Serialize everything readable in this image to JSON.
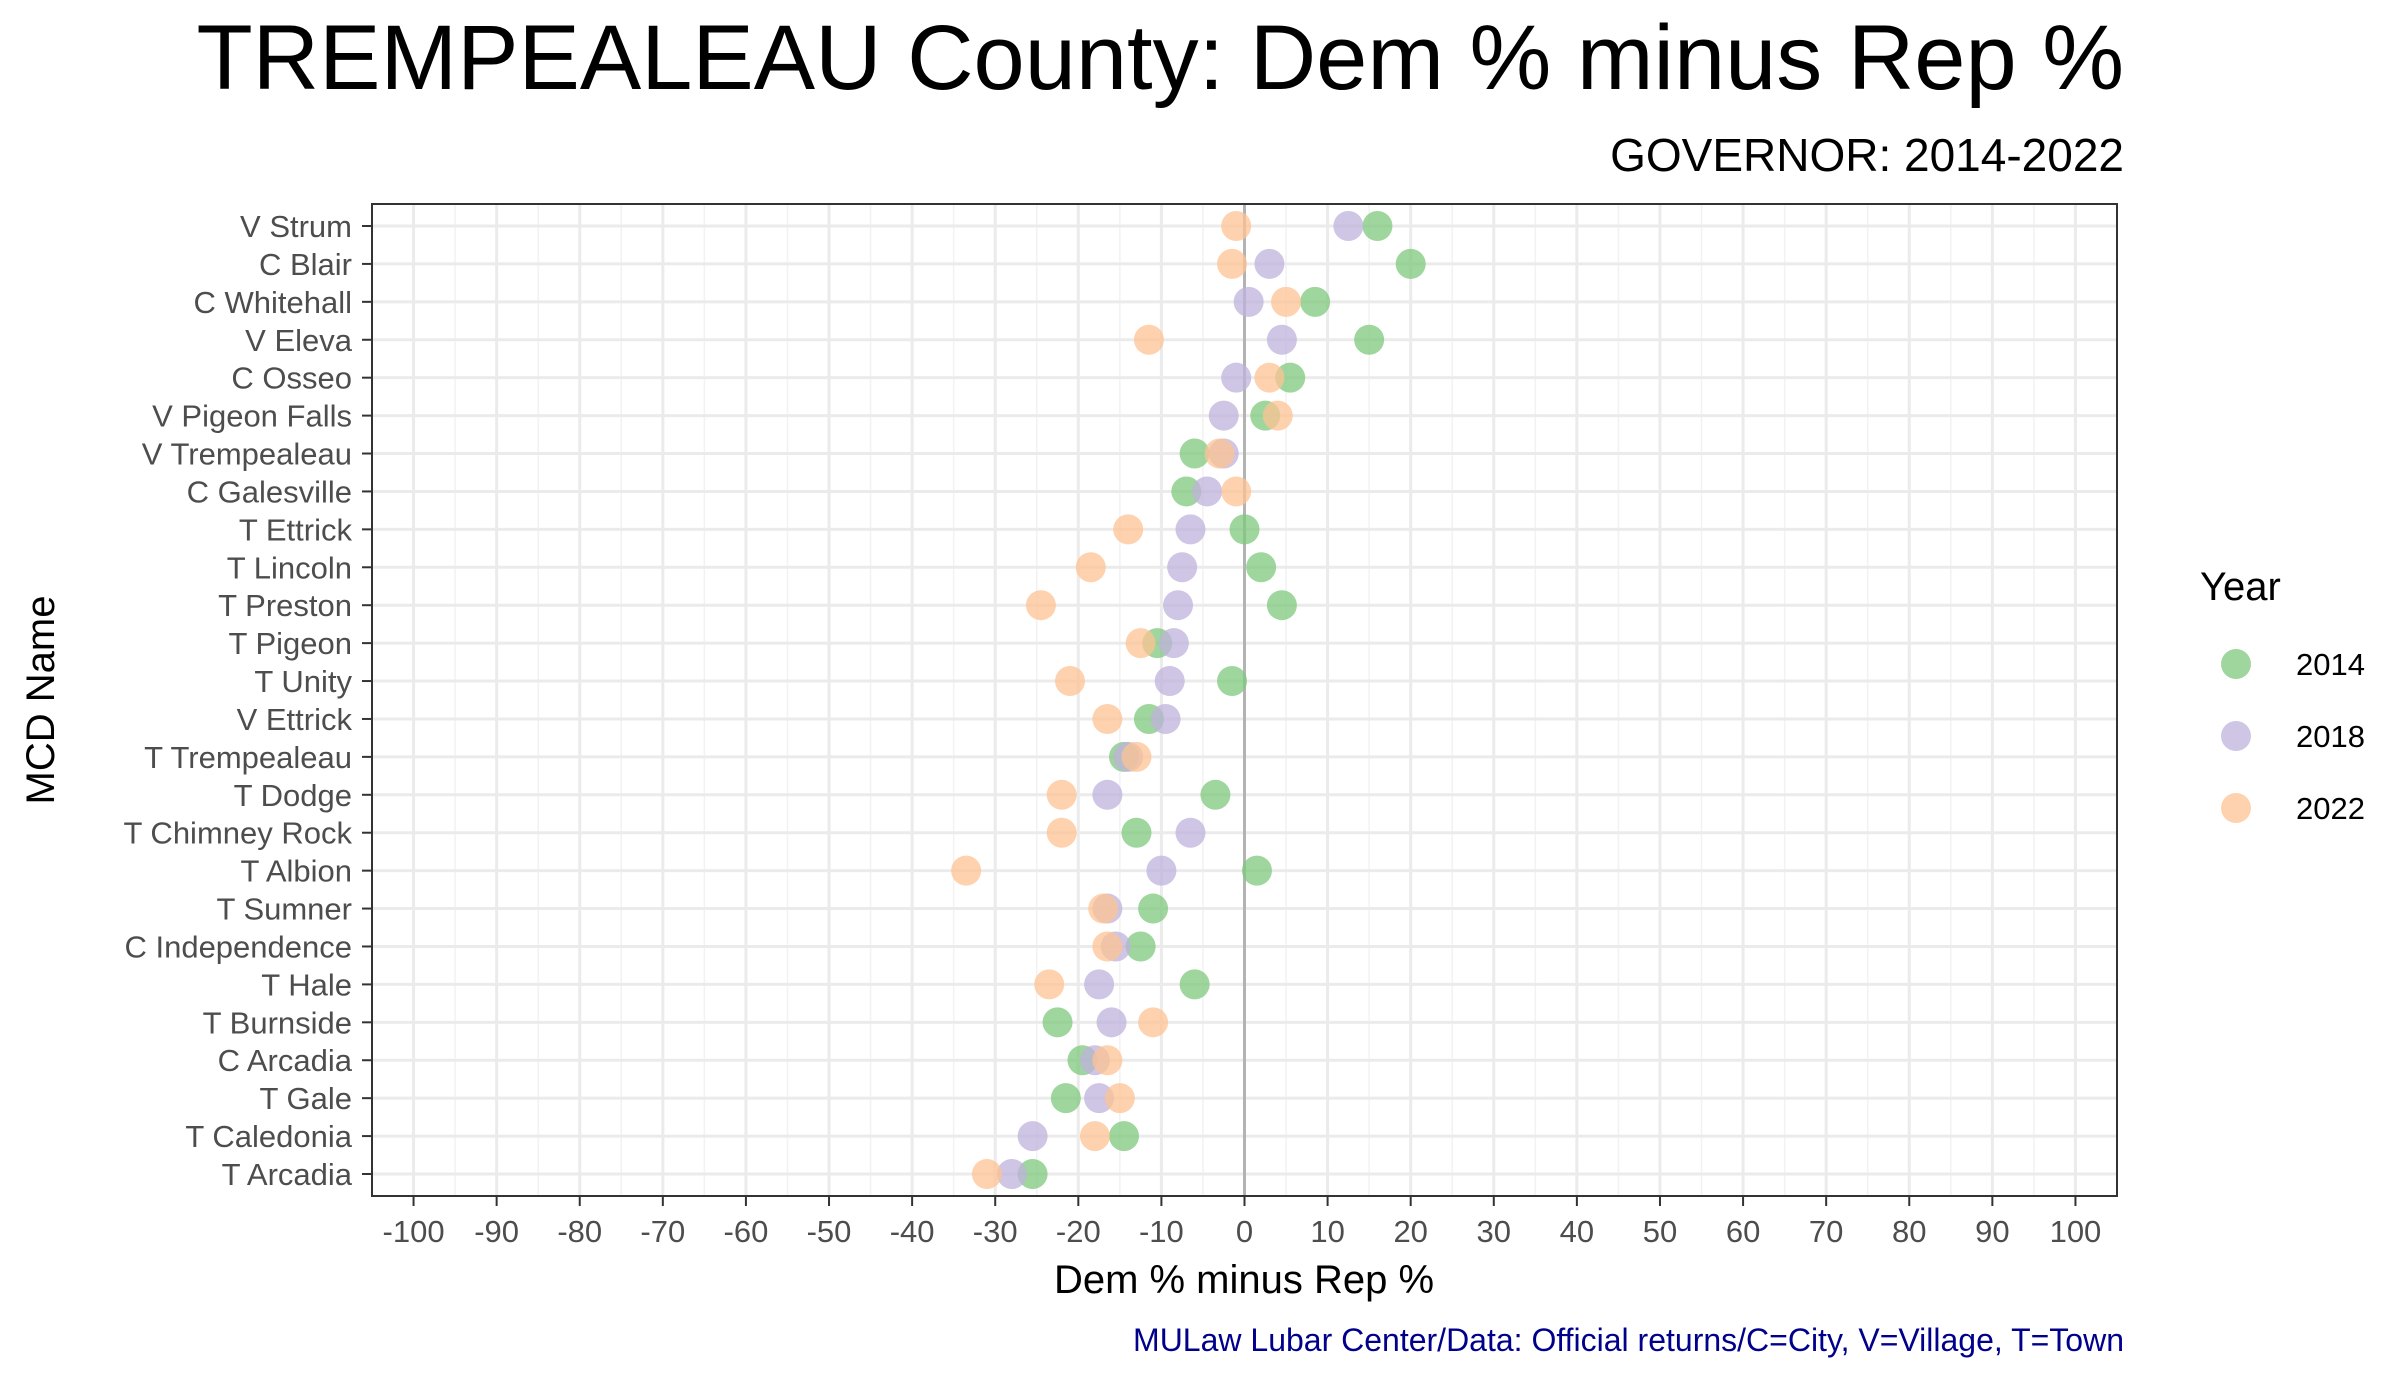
{
  "chart_data": {
    "type": "scatter",
    "title": "TREMPEALEAU County: Dem % minus Rep %",
    "subtitle": "GOVERNOR: 2014-2022",
    "xlabel": "Dem % minus Rep %",
    "ylabel": "MCD Name",
    "caption": "MULaw Lubar Center/Data: Official returns/C=City, V=Village, T=Town",
    "xlim": [
      -105,
      105
    ],
    "x_ticks": [
      -100,
      -90,
      -80,
      -70,
      -60,
      -50,
      -40,
      -30,
      -20,
      -10,
      0,
      10,
      20,
      30,
      40,
      50,
      60,
      70,
      80,
      90,
      100
    ],
    "grid": true,
    "reference_line_x": 0,
    "legend": {
      "title": "Year",
      "position": "right"
    },
    "categories": [
      "V Strum",
      "C Blair",
      "C Whitehall",
      "V Eleva",
      "C Osseo",
      "V Pigeon Falls",
      "V Trempealeau",
      "C Galesville",
      "T Ettrick",
      "T Lincoln",
      "T Preston",
      "T Pigeon",
      "T Unity",
      "V Ettrick",
      "T Trempealeau",
      "T Dodge",
      "T Chimney Rock",
      "T Albion",
      "T Sumner",
      "C Independence",
      "T Hale",
      "T Burnside",
      "C Arcadia",
      "T Gale",
      "T Caledonia",
      "T Arcadia"
    ],
    "series": [
      {
        "name": "2014",
        "color": "#7dc87d",
        "values": [
          16,
          20,
          8.5,
          15,
          5.5,
          2.5,
          -6,
          -7,
          0,
          2,
          4.5,
          -10.5,
          -1.5,
          -11.5,
          -14.5,
          -3.5,
          -13,
          1.5,
          -11,
          -12.5,
          -6,
          -22.5,
          -19.5,
          -21.5,
          -14.5,
          -25.5
        ]
      },
      {
        "name": "2018",
        "color": "#bfb1db",
        "values": [
          12.5,
          3,
          0.5,
          4.5,
          -1,
          -2.5,
          -2.5,
          -4.5,
          -6.5,
          -7.5,
          -8,
          -8.5,
          -9,
          -9.5,
          -14,
          -16.5,
          -6.5,
          -10,
          -16.5,
          -15.5,
          -17.5,
          -16,
          -18,
          -17.5,
          -25.5,
          -28
        ]
      },
      {
        "name": "2022",
        "color": "#fec393",
        "values": [
          -1,
          -1.5,
          5,
          -11.5,
          3,
          4,
          -3,
          -1,
          -14,
          -18.5,
          -24.5,
          -12.5,
          -21,
          -16.5,
          -13,
          -22,
          -22,
          -33.5,
          -17,
          -16.5,
          -23.5,
          -11,
          -16.5,
          -15,
          -18,
          -31
        ]
      }
    ]
  }
}
